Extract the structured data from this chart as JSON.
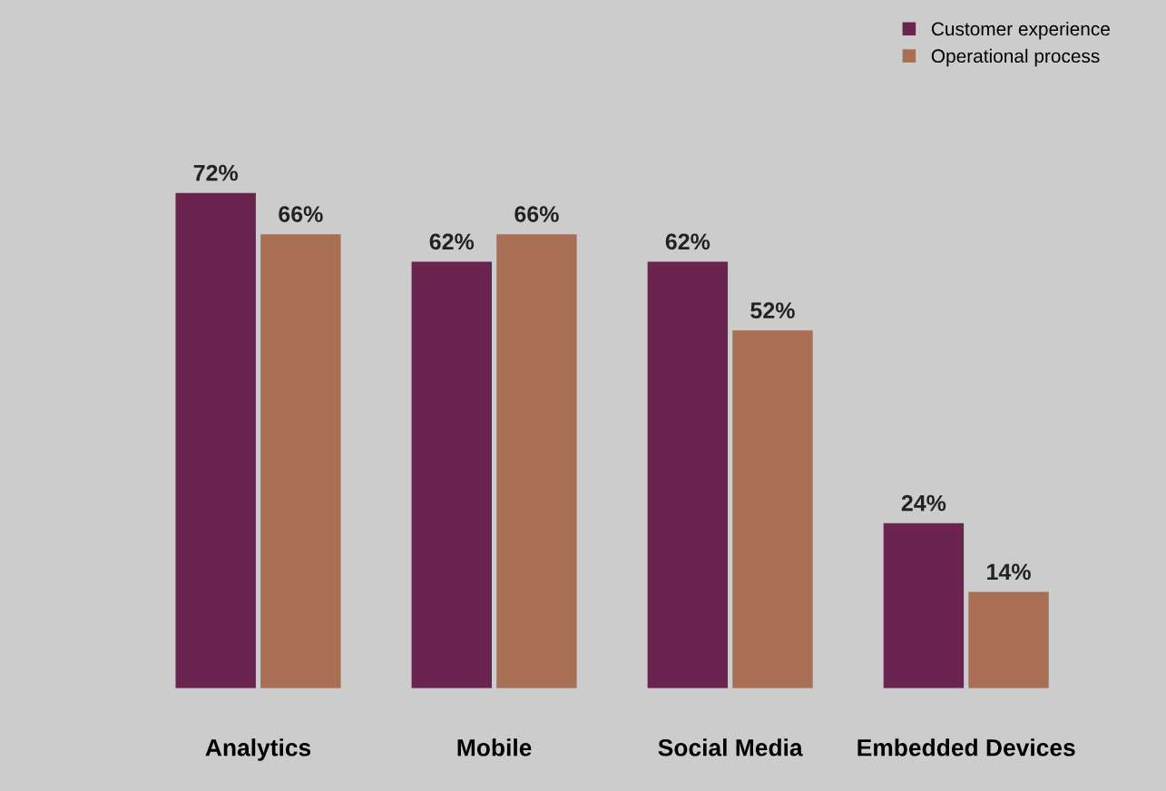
{
  "chart_data": {
    "type": "bar",
    "categories": [
      "Analytics",
      "Mobile",
      "Social Media",
      "Embedded Devices"
    ],
    "series": [
      {
        "name": "Customer experience",
        "color": "#6b2450",
        "values": [
          72,
          62,
          62,
          24
        ],
        "value_labels": [
          "72%",
          "62%",
          "62%",
          "24%"
        ]
      },
      {
        "name": "Operational process",
        "color": "#a86f55",
        "values": [
          66,
          66,
          52,
          14
        ],
        "value_labels": [
          "66%",
          "66%",
          "52%",
          "14%"
        ]
      }
    ],
    "legend": "top right",
    "grid": false
  }
}
